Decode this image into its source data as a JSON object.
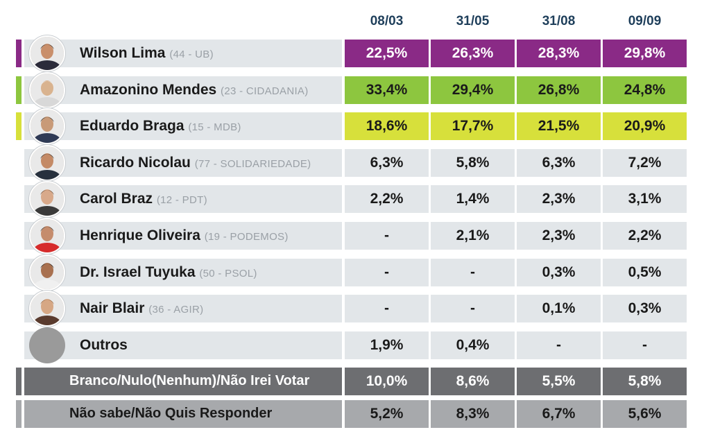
{
  "chart_data": {
    "type": "table",
    "columns": [
      "08/03",
      "31/05",
      "31/08",
      "09/09"
    ],
    "rows": [
      {
        "name": "Wilson Lima",
        "party": "(44 - UB)",
        "values": [
          "22,5%",
          "26,3%",
          "28,3%",
          "29,8%"
        ],
        "color": "#8a2a86",
        "text_color": "#ffffff"
      },
      {
        "name": "Amazonino Mendes",
        "party": "(23 - CIDADANIA)",
        "values": [
          "33,4%",
          "29,4%",
          "26,8%",
          "24,8%"
        ],
        "color": "#8dc63f",
        "text_color": "#1a1a1a"
      },
      {
        "name": "Eduardo Braga",
        "party": "(15 - MDB)",
        "values": [
          "18,6%",
          "17,7%",
          "21,5%",
          "20,9%"
        ],
        "color": "#d7e03b",
        "text_color": "#1a1a1a"
      },
      {
        "name": "Ricardo Nicolau",
        "party": "(77 - SOLIDARIEDADE)",
        "values": [
          "6,3%",
          "5,8%",
          "6,3%",
          "7,2%"
        ]
      },
      {
        "name": "Carol Braz",
        "party": "(12 - PDT)",
        "values": [
          "2,2%",
          "1,4%",
          "2,3%",
          "3,1%"
        ]
      },
      {
        "name": "Henrique Oliveira",
        "party": "(19 - PODEMOS)",
        "values": [
          "-",
          "2,1%",
          "2,3%",
          "2,2%"
        ]
      },
      {
        "name": "Dr. Israel Tuyuka",
        "party": "(50 - PSOL)",
        "values": [
          "-",
          "-",
          "0,3%",
          "0,5%"
        ]
      },
      {
        "name": "Nair Blair",
        "party": "(36 - AGIR)",
        "values": [
          "-",
          "-",
          "0,1%",
          "0,3%"
        ]
      },
      {
        "name": "Outros",
        "party": "",
        "values": [
          "1,9%",
          "0,4%",
          "-",
          "-"
        ]
      }
    ],
    "bottom_rows": [
      {
        "label": "Branco/Nulo(Nenhum)/Não Irei Votar",
        "values": [
          "10,0%",
          "8,6%",
          "5,5%",
          "5,8%"
        ],
        "color": "#6d6e71",
        "text_color": "#ffffff"
      },
      {
        "label": "Não sabe/Não Quis Responder",
        "values": [
          "5,2%",
          "8,3%",
          "6,7%",
          "5,6%"
        ],
        "color": "#a7a9ac",
        "text_color": "#1a1a1a"
      }
    ],
    "title": "",
    "xlabel": "",
    "ylabel": ""
  }
}
